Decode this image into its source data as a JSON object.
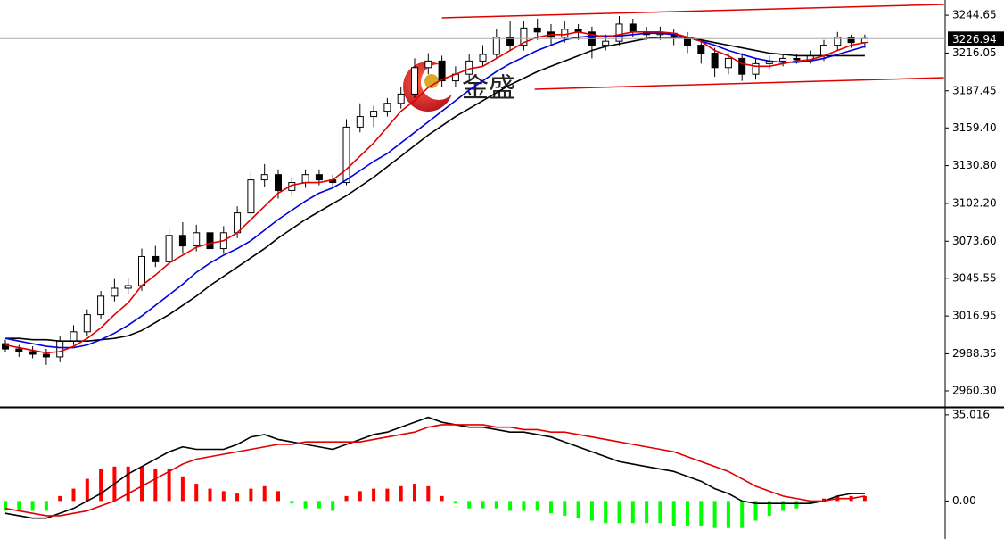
{
  "chart_data": [
    {
      "type": "candlestick",
      "ylim": [
        2948.8,
        3256.2
      ],
      "yticks": [
        3244.65,
        3216.05,
        3187.45,
        {
          "value": 3159.4,
          "label": "3159.40"
        },
        {
          "value": 3130.8,
          "label": "3130.80"
        },
        {
          "value": 3102.2,
          "label": "3102.20"
        },
        {
          "value": 3073.6,
          "label": "3073.60"
        },
        3045.55,
        3016.95,
        2988.35,
        {
          "value": 2960.3,
          "label": "2960.30"
        }
      ],
      "last_price": 3226.94,
      "watermark": "金盛",
      "open": [
        2996,
        2992,
        2990,
        2988,
        2986,
        2998,
        3005,
        3018,
        3032,
        3038,
        3040,
        3062,
        3058,
        3078,
        3070,
        3080,
        3068,
        3080,
        3095,
        3120,
        3124,
        3112,
        3118,
        3124,
        3120,
        3118,
        3160,
        3168,
        3172,
        3178,
        3185,
        3205,
        3210,
        3195,
        3200,
        3210,
        3215,
        3228,
        3222,
        3235,
        3232,
        3228,
        3234,
        3232,
        3222,
        3225,
        3238,
        3232,
        3230,
        3231,
        3228,
        3222,
        3216,
        3205,
        3212,
        3200,
        3208,
        3210,
        3212,
        3211,
        3214,
        3222,
        3228,
        3224
      ],
      "high": [
        2999,
        2995,
        2994,
        2992,
        3002,
        3010,
        3022,
        3036,
        3045,
        3046,
        3068,
        3070,
        3084,
        3088,
        3086,
        3088,
        3085,
        3100,
        3126,
        3132,
        3128,
        3122,
        3128,
        3128,
        3124,
        3166,
        3178,
        3176,
        3182,
        3190,
        3212,
        3216,
        3214,
        3206,
        3215,
        3222,
        3234,
        3240,
        3240,
        3242,
        3238,
        3240,
        3238,
        3236,
        3230,
        3244,
        3242,
        3236,
        3236,
        3234,
        3232,
        3226,
        3220,
        3216,
        3216,
        3212,
        3214,
        3215,
        3215,
        3218,
        3226,
        3232,
        3230,
        3230
      ],
      "low": [
        2990,
        2986,
        2985,
        2980,
        2982,
        2995,
        3002,
        3015,
        3028,
        3034,
        3036,
        3054,
        3055,
        3064,
        3066,
        3060,
        3064,
        3076,
        3092,
        3115,
        3106,
        3108,
        3114,
        3116,
        3114,
        3116,
        3156,
        3160,
        3168,
        3174,
        3182,
        3200,
        3190,
        3190,
        3196,
        3206,
        3212,
        3218,
        3218,
        3226,
        3222,
        3224,
        3226,
        3212,
        3218,
        3222,
        3228,
        3226,
        3226,
        3222,
        3216,
        3208,
        3198,
        3200,
        3195,
        3196,
        3204,
        3206,
        3208,
        3208,
        3210,
        3218,
        3220,
        3220
      ],
      "close": [
        2992,
        2990,
        2988,
        2986,
        2998,
        3005,
        3018,
        3032,
        3038,
        3040,
        3062,
        3058,
        3078,
        3070,
        3080,
        3068,
        3080,
        3095,
        3120,
        3124,
        3112,
        3118,
        3124,
        3120,
        3118,
        3160,
        3168,
        3172,
        3178,
        3185,
        3205,
        3210,
        3195,
        3200,
        3210,
        3215,
        3228,
        3222,
        3235,
        3232,
        3228,
        3234,
        3232,
        3222,
        3225,
        3238,
        3232,
        3230,
        3231,
        3228,
        3222,
        3216,
        3205,
        3212,
        3200,
        3208,
        3210,
        3212,
        3211,
        3214,
        3222,
        3228,
        3224,
        3227
      ],
      "series": [
        {
          "color": "#000000",
          "values": [
            3000,
            3000,
            2999,
            2999,
            2998,
            2998,
            2998,
            2999,
            3000,
            3002,
            3006,
            3012,
            3018,
            3025,
            3032,
            3040,
            3047,
            3054,
            3061,
            3068,
            3076,
            3083,
            3090,
            3096,
            3102,
            3108,
            3115,
            3122,
            3130,
            3138,
            3146,
            3154,
            3161,
            3168,
            3174,
            3180,
            3186,
            3192,
            3197,
            3202,
            3206,
            3210,
            3214,
            3218,
            3221,
            3223,
            3225,
            3227,
            3228,
            3228,
            3228,
            3226,
            3224,
            3222,
            3220,
            3218,
            3216,
            3215,
            3214,
            3214,
            3214,
            3214,
            3214,
            3214
          ]
        },
        {
          "color": "#0000dd",
          "values": [
            3000,
            2998,
            2996,
            2994,
            2993,
            2993,
            2995,
            2999,
            3004,
            3010,
            3017,
            3025,
            3033,
            3041,
            3050,
            3057,
            3063,
            3068,
            3074,
            3082,
            3090,
            3097,
            3104,
            3110,
            3114,
            3120,
            3127,
            3134,
            3140,
            3148,
            3156,
            3164,
            3172,
            3180,
            3188,
            3195,
            3202,
            3208,
            3213,
            3218,
            3222,
            3226,
            3228,
            3229,
            3229,
            3229,
            3230,
            3231,
            3231,
            3230,
            3228,
            3225,
            3222,
            3218,
            3215,
            3212,
            3210,
            3209,
            3209,
            3210,
            3212,
            3215,
            3218,
            3221
          ]
        },
        {
          "color": "#e00000",
          "values": [
            2995,
            2993,
            2991,
            2989,
            2990,
            2994,
            3000,
            3008,
            3018,
            3027,
            3040,
            3048,
            3057,
            3063,
            3069,
            3072,
            3074,
            3080,
            3090,
            3100,
            3110,
            3116,
            3118,
            3118,
            3120,
            3128,
            3138,
            3148,
            3160,
            3172,
            3180,
            3190,
            3196,
            3200,
            3204,
            3206,
            3212,
            3218,
            3224,
            3228,
            3230,
            3230,
            3232,
            3230,
            3228,
            3230,
            3232,
            3232,
            3232,
            3231,
            3228,
            3225,
            3218,
            3214,
            3208,
            3206,
            3206,
            3208,
            3210,
            3211,
            3214,
            3218,
            3222,
            3224
          ]
        }
      ],
      "channel": {
        "color": "#e00000",
        "lines": [
          {
            "x": [
              32,
              68.8
            ],
            "y": [
              3242.7,
              3252.8
            ]
          },
          {
            "x": [
              38.8,
              68.8
            ],
            "y": [
              3188.6,
              3197.4
            ]
          }
        ]
      }
    },
    {
      "type": "macd",
      "ylim": [
        -14,
        37.5
      ],
      "yticks": [
        35.016,
        {
          "value": 0,
          "label": "0.00"
        }
      ],
      "histogram": {
        "up_color": "#ff0000",
        "down_color": "#00ff00",
        "values": [
          -4,
          -4,
          -4,
          -4,
          2,
          5,
          9,
          13,
          14,
          14,
          14,
          13,
          13,
          10,
          7,
          5,
          4,
          3,
          5,
          6,
          4,
          -1,
          -3,
          -3,
          -4,
          2,
          4,
          5,
          5,
          6,
          7,
          6,
          2,
          -1,
          -3,
          -3,
          -3,
          -4,
          -4,
          -4,
          -5,
          -6,
          -7,
          -8,
          -9,
          -9,
          -9,
          -9,
          -9,
          -10,
          -10,
          -10,
          -11,
          -11,
          -11,
          -8,
          -6,
          -4,
          -3,
          -1,
          1,
          2,
          2,
          2
        ]
      },
      "series": [
        {
          "color": "#000000",
          "values": [
            -5,
            -6,
            -7,
            -7,
            -5,
            -3,
            0,
            3,
            7,
            11,
            14,
            17,
            20,
            22,
            21,
            21,
            21,
            23,
            26,
            27,
            25,
            24,
            23,
            22,
            21,
            23,
            25,
            27,
            28,
            30,
            32,
            34,
            32,
            31,
            30,
            30,
            29,
            28,
            28,
            27,
            26,
            24,
            22,
            20,
            18,
            16,
            15,
            14,
            13,
            12,
            10,
            8,
            5,
            3,
            0,
            -1,
            -1,
            -1,
            -1,
            -1,
            0,
            2,
            3,
            3
          ]
        },
        {
          "color": "#e00000",
          "values": [
            -3,
            -4,
            -5,
            -6,
            -6,
            -5,
            -4,
            -2,
            0,
            3,
            6,
            9,
            12,
            15,
            17,
            18,
            19,
            20,
            21,
            22,
            23,
            23,
            24,
            24,
            24,
            24,
            24,
            25,
            26,
            27,
            28,
            30,
            31,
            31,
            31,
            31,
            30,
            30,
            29,
            29,
            28,
            28,
            27,
            26,
            25,
            24,
            23,
            22,
            21,
            20,
            18,
            16,
            14,
            12,
            9,
            6,
            4,
            2,
            1,
            0,
            0,
            1,
            1,
            2
          ]
        }
      ]
    }
  ]
}
